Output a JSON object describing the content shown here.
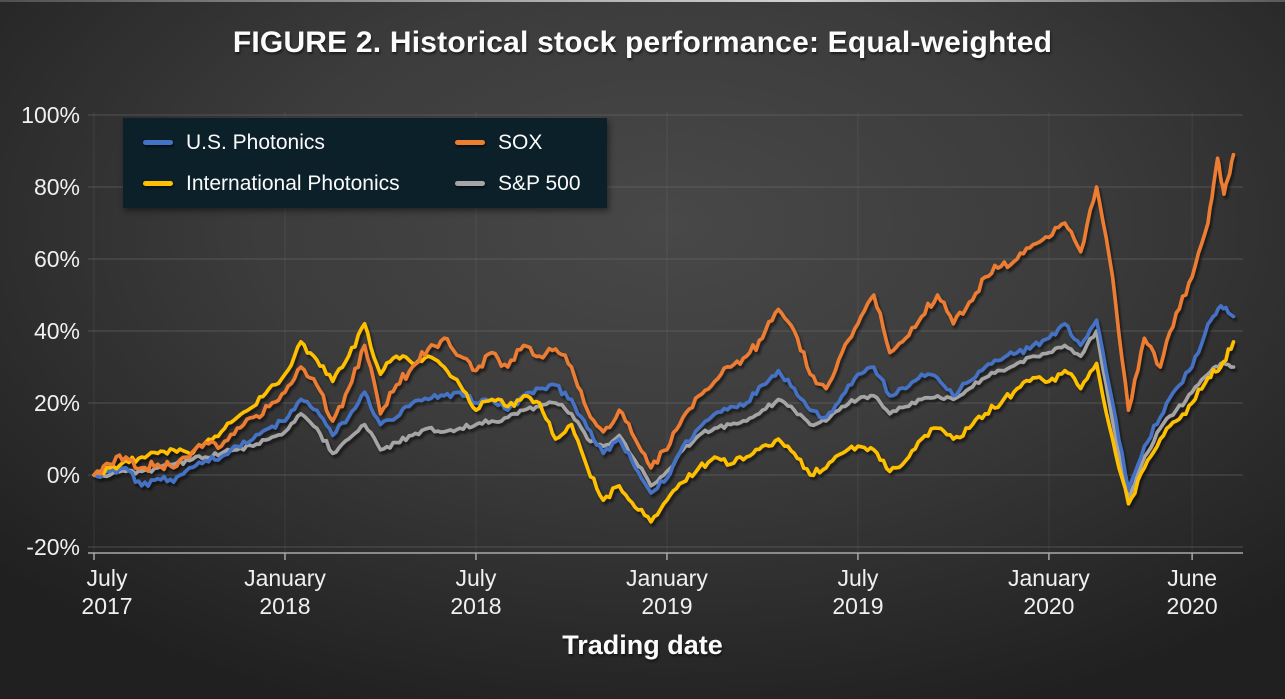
{
  "title": "FIGURE 2. Historical stock performance: Equal-weighted",
  "chart_data": {
    "type": "line",
    "title": "FIGURE 2. Historical stock performance: Equal-weighted",
    "xlabel": "Trading date",
    "ylabel": "",
    "x_unit": "months since July 2017",
    "ylim": [
      -20,
      100
    ],
    "grid": true,
    "legend_position": "top-left",
    "legend_background": "#0c2029",
    "y_ticks": [
      {
        "label": "100%",
        "value": 100
      },
      {
        "label": "80%",
        "value": 80
      },
      {
        "label": "60%",
        "value": 60
      },
      {
        "label": "40%",
        "value": 40
      },
      {
        "label": "20%",
        "value": 20
      },
      {
        "label": "0%",
        "value": 0
      },
      {
        "label": "-20%",
        "value": -20
      }
    ],
    "x_ticks": [
      {
        "month": "July",
        "year": "2017",
        "t": 0
      },
      {
        "month": "January",
        "year": "2018",
        "t": 6
      },
      {
        "month": "July",
        "year": "2018",
        "t": 12
      },
      {
        "month": "January",
        "year": "2019",
        "t": 18
      },
      {
        "month": "July",
        "year": "2019",
        "t": 24
      },
      {
        "month": "January",
        "year": "2020",
        "t": 30
      },
      {
        "month": "June",
        "year": "2020",
        "t": 34.5
      }
    ],
    "series": [
      {
        "name": "U.S. Photonics",
        "color": "#4472C4",
        "points": [
          [
            0,
            0
          ],
          [
            0.5,
            1
          ],
          [
            1,
            2
          ],
          [
            1.5,
            -3
          ],
          [
            2,
            -1
          ],
          [
            2.5,
            -2
          ],
          [
            3,
            2
          ],
          [
            3.5,
            4
          ],
          [
            4,
            5
          ],
          [
            4.5,
            8
          ],
          [
            5,
            10
          ],
          [
            5.5,
            13
          ],
          [
            6,
            15
          ],
          [
            6.5,
            21
          ],
          [
            7,
            18
          ],
          [
            7.5,
            11
          ],
          [
            8,
            16
          ],
          [
            8.5,
            23
          ],
          [
            9,
            14
          ],
          [
            9.5,
            16
          ],
          [
            10,
            20
          ],
          [
            10.5,
            21
          ],
          [
            11,
            22
          ],
          [
            11.5,
            23
          ],
          [
            12,
            20
          ],
          [
            12.5,
            21
          ],
          [
            13,
            18
          ],
          [
            13.5,
            22
          ],
          [
            14,
            24
          ],
          [
            14.5,
            25
          ],
          [
            15,
            21
          ],
          [
            15.5,
            13
          ],
          [
            16,
            6
          ],
          [
            16.5,
            10
          ],
          [
            17,
            2
          ],
          [
            17.5,
            -5
          ],
          [
            18,
            -1
          ],
          [
            18.5,
            8
          ],
          [
            19,
            13
          ],
          [
            19.5,
            17
          ],
          [
            20,
            19
          ],
          [
            20.5,
            20
          ],
          [
            21,
            25
          ],
          [
            21.5,
            29
          ],
          [
            22,
            24
          ],
          [
            22.5,
            18
          ],
          [
            23,
            16
          ],
          [
            23.5,
            22
          ],
          [
            24,
            28
          ],
          [
            24.5,
            30
          ],
          [
            25,
            22
          ],
          [
            25.5,
            24
          ],
          [
            26,
            28
          ],
          [
            26.5,
            27
          ],
          [
            27,
            22
          ],
          [
            27.5,
            26
          ],
          [
            28,
            30
          ],
          [
            28.5,
            32
          ],
          [
            29,
            34
          ],
          [
            29.5,
            36
          ],
          [
            30,
            38
          ],
          [
            30.5,
            42
          ],
          [
            31,
            36
          ],
          [
            31.5,
            43
          ],
          [
            32,
            20
          ],
          [
            32.5,
            -4
          ],
          [
            33,
            8
          ],
          [
            33.5,
            16
          ],
          [
            34,
            24
          ],
          [
            34.5,
            30
          ],
          [
            35,
            42
          ],
          [
            35.4,
            47
          ],
          [
            35.8,
            44
          ]
        ]
      },
      {
        "name": "International Photonics",
        "color": "#FFC000",
        "points": [
          [
            0,
            0
          ],
          [
            0.5,
            2
          ],
          [
            1,
            4
          ],
          [
            1.5,
            5
          ],
          [
            2,
            6
          ],
          [
            2.5,
            7
          ],
          [
            3,
            6
          ],
          [
            3.5,
            9
          ],
          [
            4,
            12
          ],
          [
            4.5,
            16
          ],
          [
            5,
            19
          ],
          [
            5.5,
            24
          ],
          [
            6,
            28
          ],
          [
            6.5,
            37
          ],
          [
            7,
            32
          ],
          [
            7.5,
            26
          ],
          [
            8,
            33
          ],
          [
            8.5,
            42
          ],
          [
            9,
            28
          ],
          [
            9.5,
            33
          ],
          [
            10,
            31
          ],
          [
            10.5,
            33
          ],
          [
            11,
            30
          ],
          [
            11.5,
            25
          ],
          [
            12,
            18
          ],
          [
            12.5,
            21
          ],
          [
            13,
            19
          ],
          [
            13.5,
            22
          ],
          [
            14,
            20
          ],
          [
            14.5,
            10
          ],
          [
            15,
            14
          ],
          [
            15.5,
            2
          ],
          [
            16,
            -7
          ],
          [
            16.5,
            -3
          ],
          [
            17,
            -9
          ],
          [
            17.5,
            -13
          ],
          [
            18,
            -7
          ],
          [
            18.5,
            -2
          ],
          [
            19,
            2
          ],
          [
            19.5,
            5
          ],
          [
            20,
            3
          ],
          [
            20.5,
            5
          ],
          [
            21,
            8
          ],
          [
            21.5,
            10
          ],
          [
            22,
            6
          ],
          [
            22.5,
            0
          ],
          [
            23,
            2
          ],
          [
            23.5,
            6
          ],
          [
            24,
            8
          ],
          [
            24.5,
            7
          ],
          [
            25,
            1
          ],
          [
            25.5,
            4
          ],
          [
            26,
            10
          ],
          [
            26.5,
            13
          ],
          [
            27,
            10
          ],
          [
            27.5,
            13
          ],
          [
            28,
            17
          ],
          [
            28.5,
            20
          ],
          [
            29,
            24
          ],
          [
            29.5,
            27
          ],
          [
            30,
            26
          ],
          [
            30.5,
            29
          ],
          [
            31,
            24
          ],
          [
            31.5,
            31
          ],
          [
            32,
            10
          ],
          [
            32.5,
            -8
          ],
          [
            33,
            2
          ],
          [
            33.5,
            10
          ],
          [
            34,
            15
          ],
          [
            34.5,
            20
          ],
          [
            35,
            27
          ],
          [
            35.4,
            30
          ],
          [
            35.8,
            37
          ]
        ]
      },
      {
        "name": "SOX",
        "color": "#ED7D31",
        "points": [
          [
            0,
            0
          ],
          [
            0.5,
            3
          ],
          [
            1,
            5
          ],
          [
            1.5,
            2
          ],
          [
            2,
            3
          ],
          [
            2.5,
            2
          ],
          [
            3,
            5
          ],
          [
            3.5,
            9
          ],
          [
            4,
            8
          ],
          [
            4.5,
            13
          ],
          [
            5,
            16
          ],
          [
            5.5,
            19
          ],
          [
            6,
            23
          ],
          [
            6.5,
            30
          ],
          [
            7,
            25
          ],
          [
            7.5,
            15
          ],
          [
            8,
            24
          ],
          [
            8.5,
            36
          ],
          [
            9,
            17
          ],
          [
            9.5,
            25
          ],
          [
            10,
            30
          ],
          [
            10.5,
            35
          ],
          [
            11,
            38
          ],
          [
            11.5,
            33
          ],
          [
            12,
            29
          ],
          [
            12.5,
            34
          ],
          [
            13,
            30
          ],
          [
            13.5,
            36
          ],
          [
            14,
            33
          ],
          [
            14.5,
            35
          ],
          [
            15,
            30
          ],
          [
            15.5,
            18
          ],
          [
            16,
            12
          ],
          [
            16.5,
            18
          ],
          [
            17,
            10
          ],
          [
            17.5,
            2
          ],
          [
            18,
            7
          ],
          [
            18.5,
            16
          ],
          [
            19,
            22
          ],
          [
            19.5,
            26
          ],
          [
            20,
            30
          ],
          [
            20.5,
            33
          ],
          [
            21,
            38
          ],
          [
            21.5,
            46
          ],
          [
            22,
            40
          ],
          [
            22.5,
            28
          ],
          [
            23,
            24
          ],
          [
            23.5,
            34
          ],
          [
            24,
            42
          ],
          [
            24.5,
            50
          ],
          [
            25,
            34
          ],
          [
            25.5,
            38
          ],
          [
            26,
            44
          ],
          [
            26.5,
            50
          ],
          [
            27,
            42
          ],
          [
            27.5,
            48
          ],
          [
            28,
            55
          ],
          [
            28.5,
            58
          ],
          [
            29,
            60
          ],
          [
            29.5,
            64
          ],
          [
            30,
            66
          ],
          [
            30.5,
            70
          ],
          [
            31,
            62
          ],
          [
            31.5,
            80
          ],
          [
            32,
            55
          ],
          [
            32.5,
            18
          ],
          [
            33,
            38
          ],
          [
            33.5,
            30
          ],
          [
            34,
            45
          ],
          [
            34.5,
            55
          ],
          [
            35,
            70
          ],
          [
            35.3,
            88
          ],
          [
            35.5,
            78
          ],
          [
            35.8,
            89
          ]
        ]
      },
      {
        "name": "S&P 500",
        "color": "#A5A5A5",
        "points": [
          [
            0,
            0
          ],
          [
            0.5,
            0
          ],
          [
            1,
            1
          ],
          [
            1.5,
            1
          ],
          [
            2,
            2
          ],
          [
            2.5,
            3
          ],
          [
            3,
            4
          ],
          [
            3.5,
            5
          ],
          [
            4,
            6
          ],
          [
            4.5,
            7
          ],
          [
            5,
            8
          ],
          [
            5.5,
            10
          ],
          [
            6,
            12
          ],
          [
            6.5,
            17
          ],
          [
            7,
            13
          ],
          [
            7.5,
            6
          ],
          [
            8,
            10
          ],
          [
            8.5,
            14
          ],
          [
            9,
            7
          ],
          [
            9.5,
            9
          ],
          [
            10,
            11
          ],
          [
            10.5,
            13
          ],
          [
            11,
            12
          ],
          [
            11.5,
            13
          ],
          [
            12,
            14
          ],
          [
            12.5,
            15
          ],
          [
            13,
            16
          ],
          [
            13.5,
            18
          ],
          [
            14,
            19
          ],
          [
            14.5,
            20
          ],
          [
            15,
            17
          ],
          [
            15.5,
            10
          ],
          [
            16,
            8
          ],
          [
            16.5,
            11
          ],
          [
            17,
            4
          ],
          [
            17.5,
            -3
          ],
          [
            18,
            1
          ],
          [
            18.5,
            7
          ],
          [
            19,
            11
          ],
          [
            19.5,
            13
          ],
          [
            20,
            14
          ],
          [
            20.5,
            15
          ],
          [
            21,
            18
          ],
          [
            21.5,
            21
          ],
          [
            22,
            18
          ],
          [
            22.5,
            14
          ],
          [
            23,
            15
          ],
          [
            23.5,
            19
          ],
          [
            24,
            21
          ],
          [
            24.5,
            22
          ],
          [
            25,
            17
          ],
          [
            25.5,
            19
          ],
          [
            26,
            21
          ],
          [
            26.5,
            22
          ],
          [
            27,
            21
          ],
          [
            27.5,
            24
          ],
          [
            28,
            27
          ],
          [
            28.5,
            29
          ],
          [
            29,
            31
          ],
          [
            29.5,
            33
          ],
          [
            30,
            34
          ],
          [
            30.5,
            36
          ],
          [
            31,
            33
          ],
          [
            31.5,
            40
          ],
          [
            32,
            15
          ],
          [
            32.5,
            -7
          ],
          [
            33,
            5
          ],
          [
            33.5,
            13
          ],
          [
            34,
            18
          ],
          [
            34.5,
            23
          ],
          [
            35,
            28
          ],
          [
            35.4,
            31
          ],
          [
            35.8,
            30
          ]
        ]
      }
    ]
  },
  "colors": {
    "background_center": "#484848",
    "background_edge": "#202020",
    "gridline": "#6e6e6e",
    "axis": "#a8a8a8",
    "tick_label": "#f0f0f0",
    "title_text": "#fcfcfc",
    "legend_background": "#0c2029",
    "legend_text": "#fafafa"
  }
}
